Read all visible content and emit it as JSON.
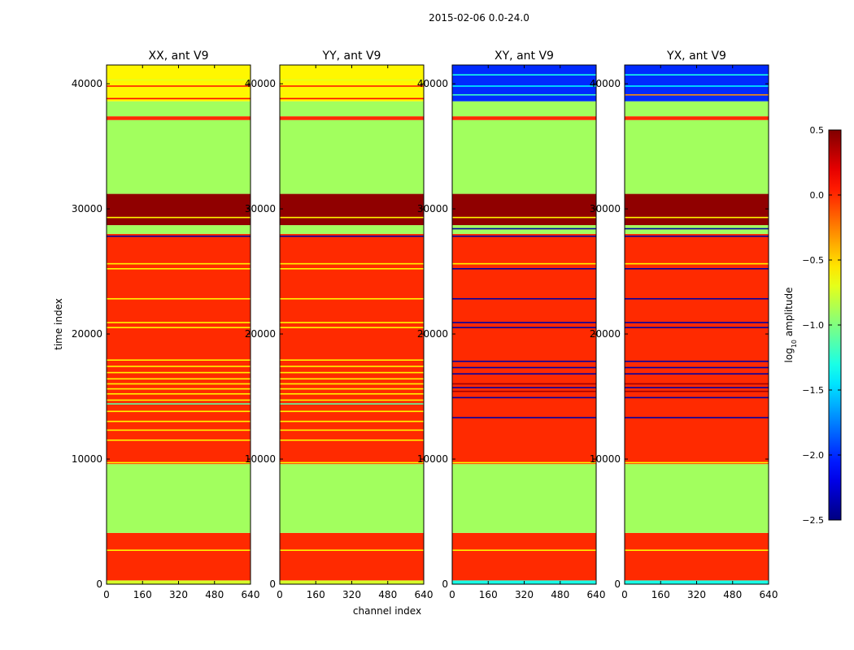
{
  "figure": {
    "suptitle": "2015-02-06 0.0-24.0",
    "xlabel": "channel index",
    "ylabel": "time index"
  },
  "colorbar": {
    "label_prefix": "log",
    "label_sub": "10",
    "label_suffix": " amplitude",
    "range": [
      -2.5,
      0.5
    ],
    "ticks": [
      "0.5",
      "0.0",
      "−0.5",
      "−1.0",
      "−1.5",
      "−2.0",
      "−2.5"
    ],
    "tick_values": [
      0.5,
      0.0,
      -0.5,
      -1.0,
      -1.5,
      -2.0,
      -2.5
    ],
    "colormap": "jet"
  },
  "chart_data": {
    "type": "heatmap",
    "x_range": [
      0,
      640
    ],
    "y_range": [
      0,
      41500
    ],
    "x_ticks": [
      "0",
      "160",
      "320",
      "480",
      "640"
    ],
    "x_tick_values": [
      0,
      160,
      320,
      480,
      640
    ],
    "y_ticks": [
      "0",
      "10000",
      "20000",
      "30000",
      "40000"
    ],
    "y_tick_values": [
      0,
      10000,
      20000,
      30000,
      40000
    ],
    "panels": [
      {
        "title": "XX, ant V9",
        "bands": [
          {
            "y0": 0,
            "y1": 300,
            "value": -0.75
          },
          {
            "y0": 300,
            "y1": 4100,
            "value": 0.0
          },
          {
            "y0": 4100,
            "y1": 9600,
            "value": -0.9
          },
          {
            "y0": 9600,
            "y1": 28000,
            "value": 0.0
          },
          {
            "y0": 28000,
            "y1": 28700,
            "value": -0.9
          },
          {
            "y0": 28700,
            "y1": 31200,
            "value": 0.45
          },
          {
            "y0": 31200,
            "y1": 37100,
            "value": -0.9
          },
          {
            "y0": 37100,
            "y1": 37400,
            "value": 0.0
          },
          {
            "y0": 37400,
            "y1": 38600,
            "value": -0.9
          },
          {
            "y0": 38600,
            "y1": 41500,
            "value": -0.6
          }
        ],
        "lines": [
          {
            "y": 2700,
            "value": -0.6
          },
          {
            "y": 9700,
            "value": -0.6
          },
          {
            "y": 11500,
            "value": -0.6
          },
          {
            "y": 12300,
            "value": -0.6
          },
          {
            "y": 13000,
            "value": -0.6
          },
          {
            "y": 13800,
            "value": -0.6
          },
          {
            "y": 14400,
            "value": -1.1
          },
          {
            "y": 14700,
            "value": -0.6
          },
          {
            "y": 15200,
            "value": -0.6
          },
          {
            "y": 15600,
            "value": -0.6
          },
          {
            "y": 16000,
            "value": -0.6
          },
          {
            "y": 16400,
            "value": -0.6
          },
          {
            "y": 16900,
            "value": -0.6
          },
          {
            "y": 17400,
            "value": -0.6
          },
          {
            "y": 17900,
            "value": -0.6
          },
          {
            "y": 20500,
            "value": -0.6
          },
          {
            "y": 20900,
            "value": -0.6
          },
          {
            "y": 22800,
            "value": -0.6
          },
          {
            "y": 25200,
            "value": -0.6
          },
          {
            "y": 25600,
            "value": -0.6
          },
          {
            "y": 27800,
            "value": -2.4
          },
          {
            "y": 29300,
            "value": -0.6
          },
          {
            "y": 39800,
            "value": 0.05
          },
          {
            "y": 40300,
            "value": -0.7
          },
          {
            "y": 38800,
            "value": 0.1
          }
        ]
      },
      {
        "title": "YY, ant V9",
        "bands": [
          {
            "y0": 0,
            "y1": 300,
            "value": -0.75
          },
          {
            "y0": 300,
            "y1": 4100,
            "value": 0.0
          },
          {
            "y0": 4100,
            "y1": 9600,
            "value": -0.9
          },
          {
            "y0": 9600,
            "y1": 28000,
            "value": 0.0
          },
          {
            "y0": 28000,
            "y1": 28700,
            "value": -0.9
          },
          {
            "y0": 28700,
            "y1": 31200,
            "value": 0.45
          },
          {
            "y0": 31200,
            "y1": 37100,
            "value": -0.9
          },
          {
            "y0": 37100,
            "y1": 37400,
            "value": 0.0
          },
          {
            "y0": 37400,
            "y1": 38600,
            "value": -0.9
          },
          {
            "y0": 38600,
            "y1": 41500,
            "value": -0.6
          }
        ],
        "lines": [
          {
            "y": 2700,
            "value": -0.6
          },
          {
            "y": 9700,
            "value": -0.6
          },
          {
            "y": 11500,
            "value": -0.6
          },
          {
            "y": 12300,
            "value": -0.6
          },
          {
            "y": 13000,
            "value": -0.6
          },
          {
            "y": 13800,
            "value": -0.6
          },
          {
            "y": 14400,
            "value": -1.1
          },
          {
            "y": 14700,
            "value": -0.6
          },
          {
            "y": 15200,
            "value": -0.6
          },
          {
            "y": 15600,
            "value": -0.6
          },
          {
            "y": 16000,
            "value": -0.6
          },
          {
            "y": 16400,
            "value": -0.6
          },
          {
            "y": 16900,
            "value": -0.6
          },
          {
            "y": 17400,
            "value": -0.6
          },
          {
            "y": 17900,
            "value": -0.6
          },
          {
            "y": 20500,
            "value": -0.6
          },
          {
            "y": 20900,
            "value": -0.6
          },
          {
            "y": 22800,
            "value": -0.6
          },
          {
            "y": 25200,
            "value": -0.6
          },
          {
            "y": 25600,
            "value": -0.6
          },
          {
            "y": 27800,
            "value": -2.4
          },
          {
            "y": 29300,
            "value": -0.6
          },
          {
            "y": 39800,
            "value": 0.05
          },
          {
            "y": 40300,
            "value": -0.7
          },
          {
            "y": 38800,
            "value": 0.1
          }
        ]
      },
      {
        "title": "XY, ant V9",
        "bands": [
          {
            "y0": 0,
            "y1": 300,
            "value": -1.3
          },
          {
            "y0": 300,
            "y1": 4100,
            "value": 0.0
          },
          {
            "y0": 4100,
            "y1": 9600,
            "value": -0.9
          },
          {
            "y0": 9600,
            "y1": 28000,
            "value": 0.0
          },
          {
            "y0": 28000,
            "y1": 28700,
            "value": -0.9
          },
          {
            "y0": 28700,
            "y1": 31200,
            "value": 0.45
          },
          {
            "y0": 31200,
            "y1": 37100,
            "value": -0.9
          },
          {
            "y0": 37100,
            "y1": 37400,
            "value": 0.0
          },
          {
            "y0": 37400,
            "y1": 38600,
            "value": -0.9
          },
          {
            "y0": 38600,
            "y1": 41500,
            "value": -2.0
          }
        ],
        "lines": [
          {
            "y": 2700,
            "value": -0.6
          },
          {
            "y": 9700,
            "value": -0.6
          },
          {
            "y": 13300,
            "value": -2.4
          },
          {
            "y": 14900,
            "value": -2.4
          },
          {
            "y": 15400,
            "value": 0.4
          },
          {
            "y": 15700,
            "value": -2.4
          },
          {
            "y": 16000,
            "value": 0.4
          },
          {
            "y": 16800,
            "value": -2.4
          },
          {
            "y": 17300,
            "value": -2.4
          },
          {
            "y": 17800,
            "value": -2.4
          },
          {
            "y": 20500,
            "value": -2.4
          },
          {
            "y": 20900,
            "value": -2.4
          },
          {
            "y": 22800,
            "value": -2.4
          },
          {
            "y": 25200,
            "value": -2.4
          },
          {
            "y": 25600,
            "value": -0.6
          },
          {
            "y": 27800,
            "value": -2.4
          },
          {
            "y": 28400,
            "value": -2.4
          },
          {
            "y": 29300,
            "value": -0.6
          },
          {
            "y": 39100,
            "value": -1.2
          },
          {
            "y": 39800,
            "value": -1.4
          },
          {
            "y": 40700,
            "value": -1.3
          }
        ]
      },
      {
        "title": "YX, ant V9",
        "bands": [
          {
            "y0": 0,
            "y1": 300,
            "value": -1.3
          },
          {
            "y0": 300,
            "y1": 4100,
            "value": 0.0
          },
          {
            "y0": 4100,
            "y1": 9600,
            "value": -0.9
          },
          {
            "y0": 9600,
            "y1": 28000,
            "value": 0.0
          },
          {
            "y0": 28000,
            "y1": 28700,
            "value": -0.9
          },
          {
            "y0": 28700,
            "y1": 31200,
            "value": 0.45
          },
          {
            "y0": 31200,
            "y1": 37100,
            "value": -0.9
          },
          {
            "y0": 37100,
            "y1": 37400,
            "value": 0.0
          },
          {
            "y0": 37400,
            "y1": 38600,
            "value": -0.9
          },
          {
            "y0": 38600,
            "y1": 41500,
            "value": -2.0
          }
        ],
        "lines": [
          {
            "y": 2700,
            "value": -0.6
          },
          {
            "y": 9700,
            "value": -0.6
          },
          {
            "y": 13300,
            "value": -2.4
          },
          {
            "y": 14900,
            "value": -2.4
          },
          {
            "y": 15400,
            "value": 0.4
          },
          {
            "y": 15700,
            "value": -2.4
          },
          {
            "y": 16000,
            "value": 0.4
          },
          {
            "y": 16800,
            "value": -2.4
          },
          {
            "y": 17300,
            "value": -2.4
          },
          {
            "y": 17800,
            "value": -2.4
          },
          {
            "y": 20500,
            "value": -2.4
          },
          {
            "y": 20900,
            "value": -2.4
          },
          {
            "y": 22800,
            "value": -2.4
          },
          {
            "y": 25200,
            "value": -2.4
          },
          {
            "y": 25600,
            "value": -0.6
          },
          {
            "y": 27800,
            "value": -2.4
          },
          {
            "y": 28400,
            "value": -2.4
          },
          {
            "y": 29300,
            "value": -0.6
          },
          {
            "y": 39100,
            "value": -0.3
          },
          {
            "y": 39800,
            "value": -1.4
          },
          {
            "y": 40700,
            "value": -1.3
          }
        ]
      }
    ]
  }
}
